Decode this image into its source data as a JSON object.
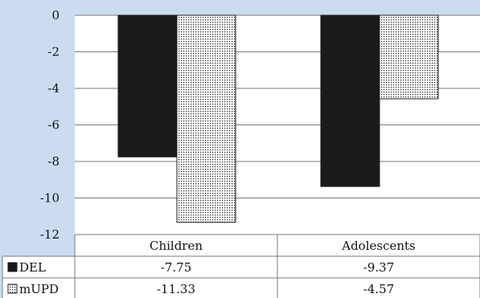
{
  "chart_data": {
    "type": "bar",
    "title": "",
    "xlabel": "",
    "ylabel": "",
    "ylim": [
      -12,
      0
    ],
    "yticks": [
      0,
      -2,
      -4,
      -6,
      -8,
      -10,
      -12
    ],
    "grid": true,
    "categories": [
      "Children",
      "Adolescents"
    ],
    "series": [
      {
        "name": "DEL",
        "values": [
          -7.75,
          -9.37
        ],
        "fill": "solid-black",
        "color": "#1a1a1a"
      },
      {
        "name": "mUPD",
        "values": [
          -11.33,
          -4.57
        ],
        "fill": "dotted",
        "color": "#ffffff"
      }
    ],
    "data_table": {
      "rows": [
        {
          "series": "DEL",
          "cells": [
            "-7.75",
            "-9.37"
          ]
        },
        {
          "series": "mUPD",
          "cells": [
            "-11.33",
            "-4.57"
          ]
        }
      ]
    }
  },
  "colors": {
    "background": "#ccdcf0",
    "plot_area": "#ffffff",
    "gridline": "#7a7a7a",
    "bar_del": "#1a1a1a",
    "bar_mupd_dots": "#2a2a2a"
  }
}
